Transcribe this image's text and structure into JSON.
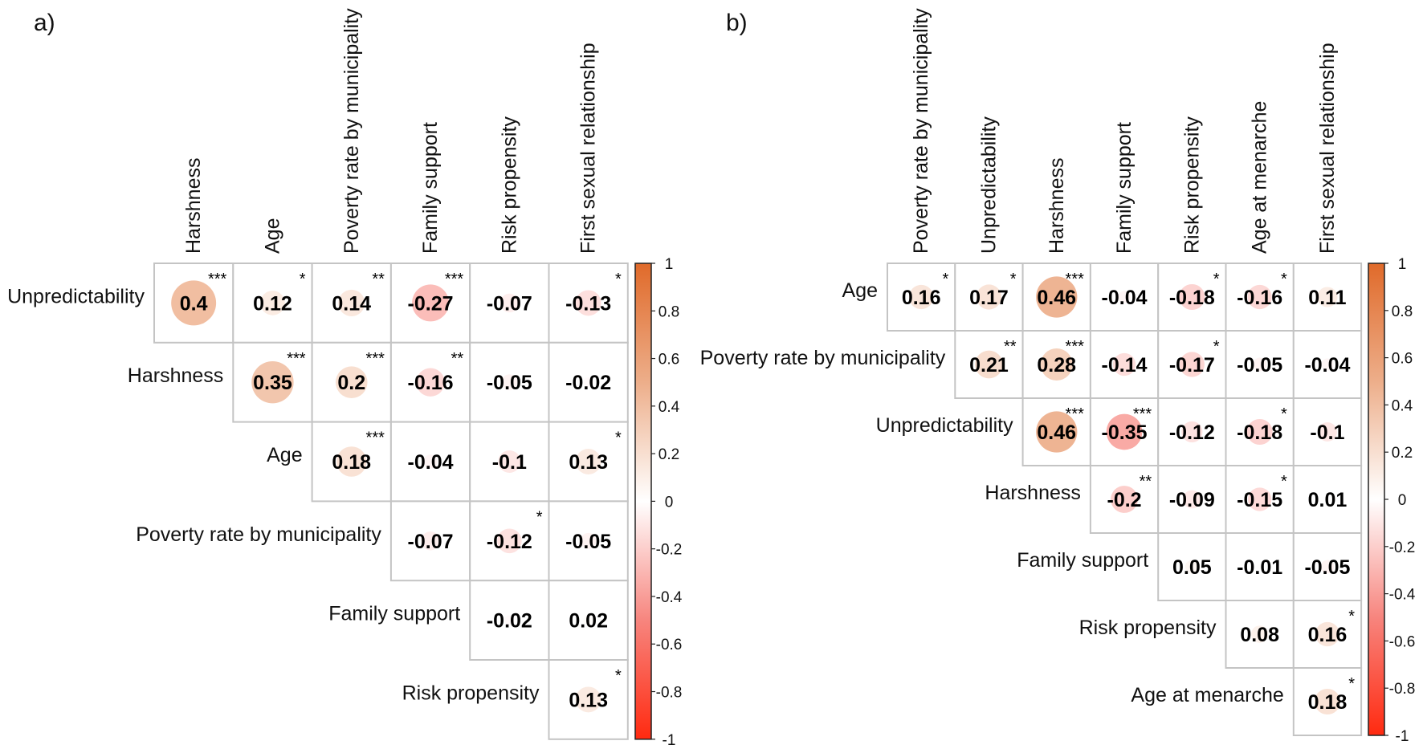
{
  "chart_data": [
    {
      "type": "heatmap",
      "panel_label": "a)",
      "columns": [
        "Harshness",
        "Age",
        "Poverty rate by municipality",
        "Family support",
        "Risk propensity",
        "First sexual relationship"
      ],
      "rows": [
        "Unpredictability",
        "Harshness",
        "Age",
        "Poverty rate by municipality",
        "Family support",
        "Risk propensity"
      ],
      "values": [
        [
          "0.4",
          "0.12",
          "0.14",
          "-0.27",
          "-0.07",
          "-0.13"
        ],
        [
          "0.35",
          "0.2",
          "-0.16",
          "-0.05",
          "-0.02"
        ],
        [
          "0.18",
          "-0.04",
          "-0.1",
          "0.13"
        ],
        [
          "-0.07",
          "-0.12",
          "-0.05"
        ],
        [
          "-0.02",
          "0.02"
        ],
        [
          "0.13"
        ]
      ],
      "significance": [
        [
          "***",
          "*",
          "**",
          "***",
          "",
          "*"
        ],
        [
          "***",
          "***",
          "**",
          "",
          ""
        ],
        [
          "***",
          "",
          "",
          "*"
        ],
        [
          "",
          "*",
          ""
        ],
        [
          "",
          ""
        ],
        [
          "*"
        ]
      ],
      "colorbar": {
        "range": [
          -1,
          1
        ],
        "tick_values": [
          1,
          0.8,
          0.6,
          0.4,
          0.2,
          0,
          -0.2,
          -0.4,
          -0.6,
          -0.8,
          -1
        ],
        "tick_labels": [
          "1",
          "0.8",
          "0.6",
          "0.4",
          "0.2",
          "0",
          "-0.2",
          "-0.4",
          "-0.6",
          "-0.8",
          "-1"
        ],
        "colors": {
          "negative": "#FF2A10",
          "mid_negative": "#F7857E",
          "zero": "#FFFFFF",
          "mid_positive": "#EDAE8A",
          "positive": "#E06A2A"
        }
      }
    },
    {
      "type": "heatmap",
      "panel_label": "b)",
      "columns": [
        "Poverty rate by municipality",
        "Unpredictability",
        "Harshness",
        "Family support",
        "Risk propensity",
        "Age at menarche",
        "First sexual relationship"
      ],
      "rows": [
        "Age",
        "Poverty rate by municipality",
        "Unpredictability",
        "Harshness",
        "Family support",
        "Risk propensity",
        "Age at menarche"
      ],
      "values": [
        [
          "0.16",
          "0.17",
          "0.46",
          "-0.04",
          "-0.18",
          "-0.16",
          "0.11"
        ],
        [
          "0.21",
          "0.28",
          "-0.14",
          "-0.17",
          "-0.05",
          "-0.04"
        ],
        [
          "0.46",
          "-0.35",
          "-0.12",
          "-0.18",
          "-0.1"
        ],
        [
          "-0.2",
          "-0.09",
          "-0.15",
          "0.01"
        ],
        [
          "0.05",
          "-0.01",
          "-0.05"
        ],
        [
          "0.08",
          "0.16"
        ],
        [
          "0.18"
        ]
      ],
      "significance": [
        [
          "*",
          "*",
          "***",
          "",
          "*",
          "*",
          ""
        ],
        [
          "**",
          "***",
          "",
          "*",
          "",
          ""
        ],
        [
          "***",
          "***",
          "",
          "*",
          ""
        ],
        [
          "**",
          "",
          "*",
          ""
        ],
        [
          "",
          "",
          ""
        ],
        [
          "",
          "*"
        ],
        [
          "*"
        ]
      ],
      "colorbar": {
        "range": [
          -1,
          1
        ],
        "tick_values": [
          1,
          0.8,
          0.6,
          0.4,
          0.2,
          0,
          -0.2,
          -0.4,
          -0.6,
          -0.8,
          -1
        ],
        "tick_labels": [
          "1",
          "0.8",
          "0.6",
          "0.4",
          "0.2",
          "0",
          "-0.2",
          "-0.4",
          "-0.6",
          "-0.8",
          "-1"
        ],
        "colors": {
          "negative": "#FF2A10",
          "mid_negative": "#F7857E",
          "zero": "#FFFFFF",
          "mid_positive": "#EDAE8A",
          "positive": "#E06A2A"
        }
      }
    }
  ]
}
